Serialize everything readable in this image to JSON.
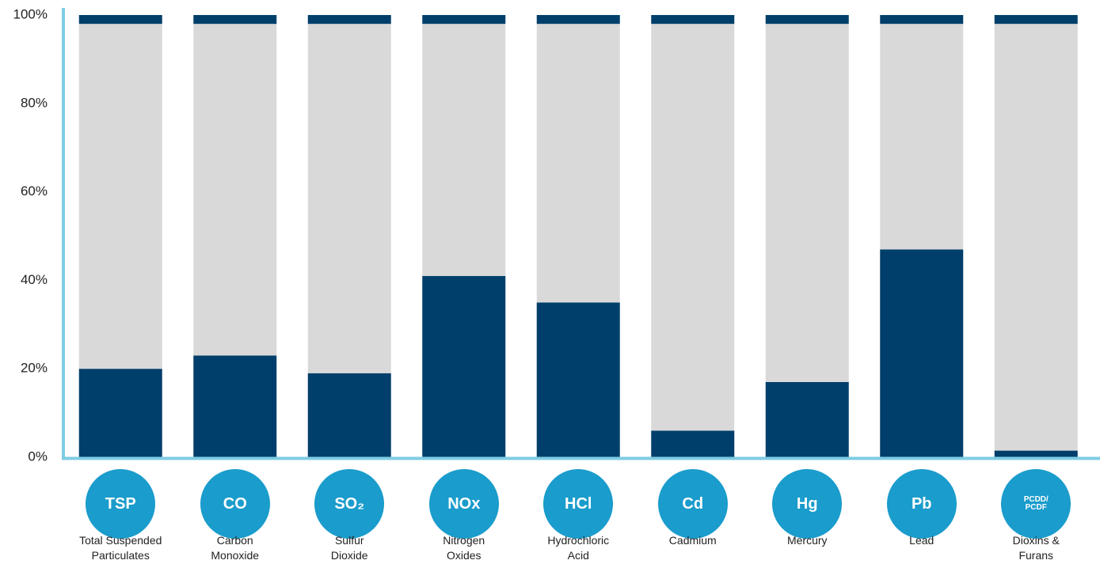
{
  "chart_data": {
    "type": "stacked_bar",
    "categories": [
      "Total Suspended\nParticulates",
      "Carbon\nMonoxide",
      "Sulfur\nDioxide",
      "Nitrogen\nOxides",
      "Hydrochloric\nAcid",
      "Cadmium",
      "Mercury",
      "Lead",
      "Dioxins &\nFurans"
    ],
    "icons": [
      "TSP",
      "CO",
      "SO₂",
      "NOx",
      "HCl",
      "Cd",
      "Hg",
      "Pb",
      "PCDD/\nPCDF"
    ],
    "series": [
      {
        "color": "#003f6b",
        "values": [
          20,
          23,
          19,
          41,
          35,
          6,
          17,
          47,
          1.5
        ]
      },
      {
        "color": "#d9d9d9",
        "values": [
          78,
          75,
          79,
          57,
          63,
          92,
          81,
          51,
          96.5
        ]
      },
      {
        "color": "#003f6b",
        "values": [
          2,
          2,
          2,
          2,
          2,
          2,
          2,
          2,
          2
        ]
      }
    ],
    "ylim": [
      0,
      100
    ],
    "yticks": [
      {
        "value": 0,
        "label": "0%"
      },
      {
        "value": 20,
        "label": "20%"
      },
      {
        "value": 40,
        "label": "40%"
      },
      {
        "value": 60,
        "label": "60%"
      },
      {
        "value": 80,
        "label": "80%"
      },
      {
        "value": 100,
        "label": "100%"
      }
    ],
    "axis_color": "#7fcce3",
    "icon_color": "#1a9ccc"
  }
}
